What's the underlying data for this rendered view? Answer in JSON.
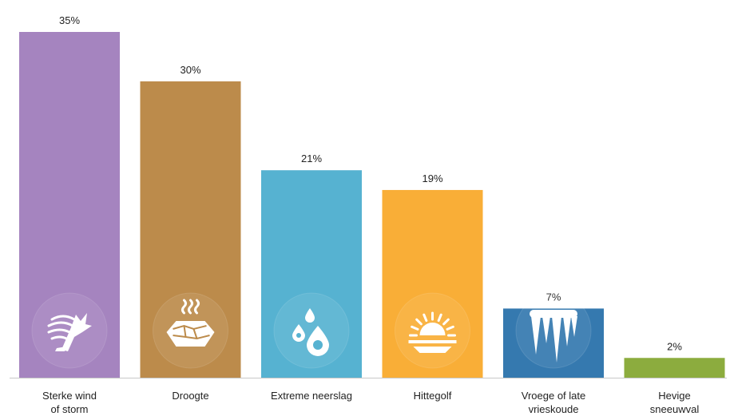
{
  "chart_data": {
    "type": "bar",
    "categories": [
      [
        "Sterke wind",
        "of storm"
      ],
      [
        "Droogte"
      ],
      [
        "Extreme neerslag"
      ],
      [
        "Hittegolf"
      ],
      [
        "Vroege of late",
        "vrieskoude"
      ],
      [
        "Hevige",
        "sneeuwval"
      ]
    ],
    "values": [
      35,
      30,
      21,
      19,
      7,
      2
    ],
    "value_labels": [
      "35%",
      "30%",
      "21%",
      "19%",
      "7%",
      "2%"
    ],
    "bar_colors": [
      "#A584BF",
      "#BC8B4B",
      "#56B2D1",
      "#F9AE37",
      "#3579AF",
      "#8CAC3E"
    ],
    "icons": [
      "wind-storm-icon",
      "drought-icon",
      "rain-drops-icon",
      "sun-heat-icon",
      "icicles-icon",
      null
    ],
    "ylim": [
      0,
      35
    ],
    "grid": false,
    "legend": "none"
  }
}
